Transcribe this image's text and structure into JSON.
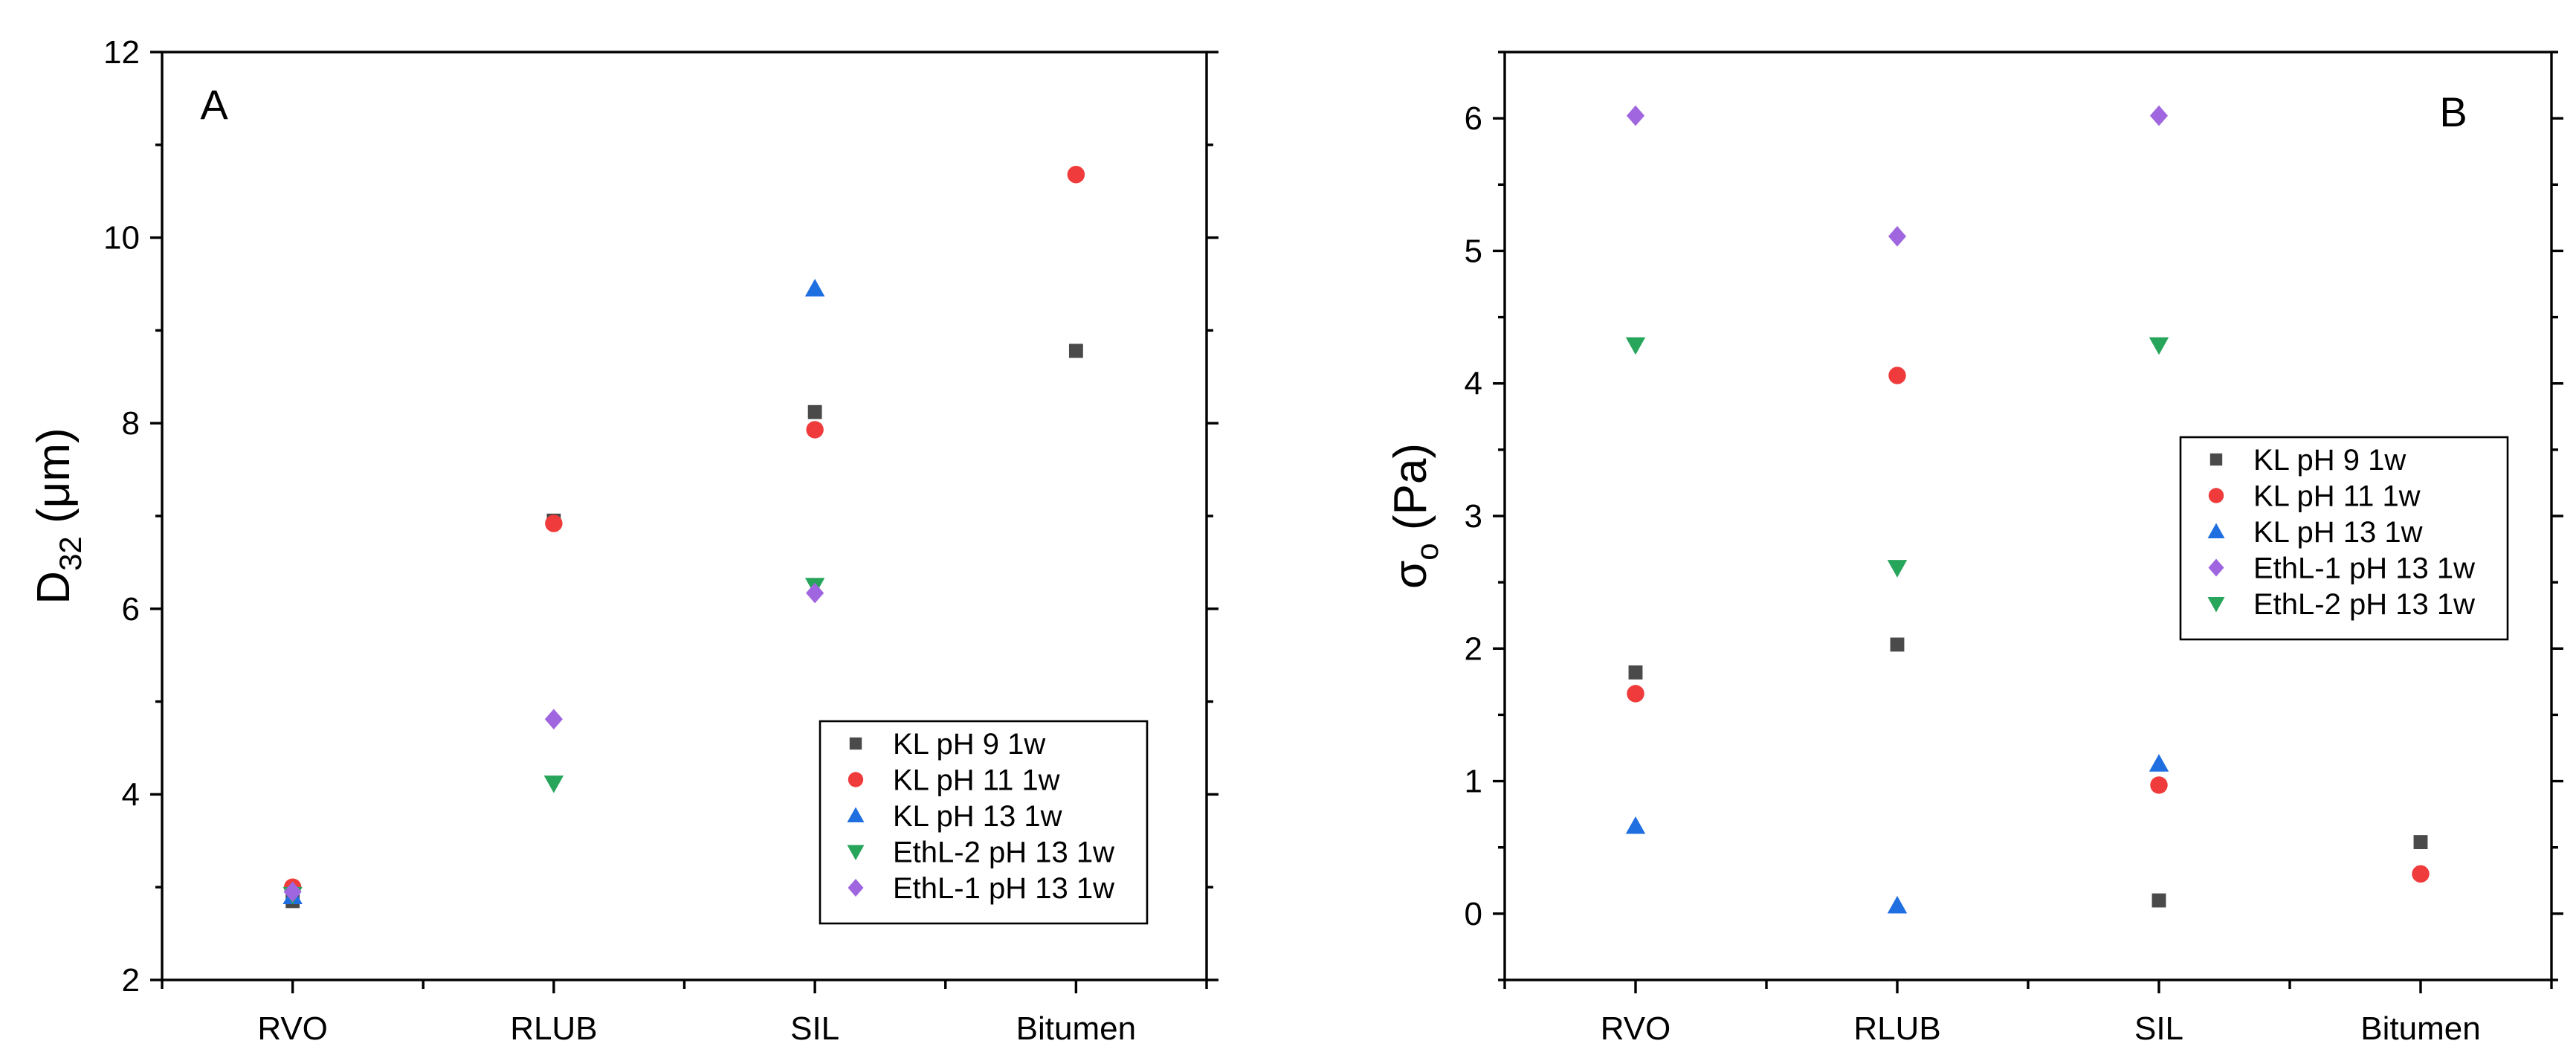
{
  "chart_data": [
    {
      "type": "scatter",
      "panel_letter": "A",
      "title": "",
      "xlabel": "",
      "ylabel_main": "D",
      "ylabel_sub": "32",
      "ylabel_unit": " (μm)",
      "categories": [
        "RVO",
        "RLUB",
        "SIL",
        "Bitumen"
      ],
      "ylim": [
        2,
        12
      ],
      "yticks": [
        2,
        4,
        6,
        8,
        10,
        12
      ],
      "ytick_labels": [
        "2",
        "4",
        "6",
        "8",
        "10",
        "12"
      ],
      "legend_position": "bottom-right",
      "legend_order": [
        0,
        1,
        2,
        3,
        4
      ],
      "series": [
        {
          "name": "KL pH 9 1w",
          "marker": "square",
          "color": "#4a4a4a",
          "values": [
            2.85,
            6.95,
            8.12,
            8.78
          ]
        },
        {
          "name": "KL pH 11 1w",
          "marker": "circle",
          "color": "#ef3b3b",
          "values": [
            3.0,
            6.92,
            7.93,
            10.68
          ]
        },
        {
          "name": "KL pH 13 1w",
          "marker": "triangle-up",
          "color": "#1f6fe0",
          "values": [
            2.9,
            null,
            9.45,
            null
          ]
        },
        {
          "name": "EthL-2 pH 13 1w",
          "marker": "triangle-down",
          "color": "#27a55a",
          "values": [
            2.92,
            4.12,
            6.25,
            null
          ]
        },
        {
          "name": "EthL-1 pH 13 1w",
          "marker": "diamond",
          "color": "#a066e0",
          "values": [
            2.95,
            4.81,
            6.17,
            null
          ]
        }
      ]
    },
    {
      "type": "scatter",
      "panel_letter": "B",
      "title": "",
      "xlabel": "",
      "ylabel_main": "σ",
      "ylabel_sub": "o",
      "ylabel_unit": " (Pa)",
      "categories": [
        "RVO",
        "RLUB",
        "SIL",
        "Bitumen"
      ],
      "ylim": [
        -0.5,
        6.5
      ],
      "yticks": [
        0,
        1,
        2,
        3,
        4,
        5,
        6
      ],
      "ytick_labels": [
        "0",
        "1",
        "2",
        "3",
        "4",
        "5",
        "6"
      ],
      "legend_position": "center-right",
      "legend_order": [
        0,
        1,
        2,
        4,
        3
      ],
      "series": [
        {
          "name": "KL pH 9 1w",
          "marker": "square",
          "color": "#4a4a4a",
          "values": [
            1.82,
            2.03,
            0.1,
            0.54
          ]
        },
        {
          "name": "KL pH 11 1w",
          "marker": "circle",
          "color": "#ef3b3b",
          "values": [
            1.66,
            4.06,
            0.97,
            0.3
          ]
        },
        {
          "name": "KL pH 13 1w",
          "marker": "triangle-up",
          "color": "#1f6fe0",
          "values": [
            0.66,
            0.06,
            1.13,
            null
          ]
        },
        {
          "name": "EthL-2 pH 13 1w",
          "marker": "triangle-down",
          "color": "#27a55a",
          "values": [
            4.29,
            2.61,
            4.29,
            null
          ]
        },
        {
          "name": "EthL-1 pH 13 1w",
          "marker": "diamond",
          "color": "#a066e0",
          "values": [
            6.02,
            5.11,
            6.02,
            null
          ]
        }
      ]
    }
  ]
}
